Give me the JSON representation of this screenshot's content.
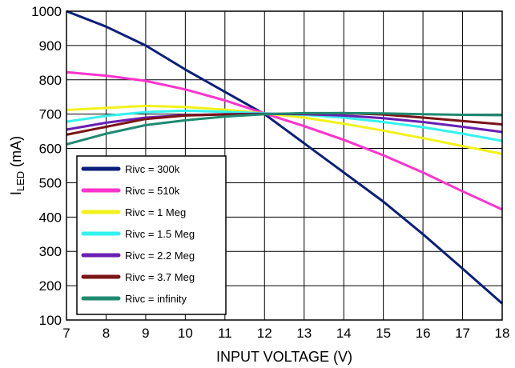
{
  "chart_data": {
    "type": "line",
    "xlabel": "INPUT VOLTAGE (V)",
    "ylabel_main": "I",
    "ylabel_sub": "LED",
    "ylabel_unit": " (mA)",
    "xlim": [
      7,
      18
    ],
    "ylim": [
      100,
      1000
    ],
    "xticks": [
      "7",
      "8",
      "9",
      "10",
      "11",
      "12",
      "13",
      "14",
      "15",
      "16",
      "17",
      "18"
    ],
    "yticks": [
      "100",
      "200",
      "300",
      "400",
      "500",
      "600",
      "700",
      "800",
      "900",
      "1000"
    ],
    "grid": true,
    "legend_position": "bottom-left",
    "x": [
      7,
      8,
      9,
      10,
      11,
      12,
      13,
      14,
      15,
      16,
      17,
      18
    ],
    "series": [
      {
        "name": "Rivc = 300k",
        "color": "#0a1f7a",
        "values": [
          1000,
          955,
          900,
          830,
          765,
          700,
          615,
          530,
          445,
          350,
          250,
          148
        ]
      },
      {
        "name": "Rivc = 510k",
        "color": "#ff33cc",
        "values": [
          822,
          812,
          797,
          772,
          740,
          702,
          665,
          625,
          580,
          530,
          475,
          422
        ]
      },
      {
        "name": "Rivc = 1 Meg",
        "color": "#f2f21a",
        "values": [
          712,
          718,
          724,
          721,
          713,
          702,
          690,
          672,
          652,
          630,
          607,
          584
        ]
      },
      {
        "name": "Rivc = 1.5 Meg",
        "color": "#33f2ee",
        "values": [
          678,
          695,
          706,
          710,
          707,
          702,
          698,
          690,
          677,
          662,
          643,
          622
        ]
      },
      {
        "name": "Rivc = 2.2 Meg",
        "color": "#6a1fb3",
        "values": [
          655,
          675,
          690,
          697,
          700,
          701,
          700,
          696,
          688,
          677,
          663,
          648
        ]
      },
      {
        "name": "Rivc = 3.7 Meg",
        "color": "#7a1416",
        "values": [
          640,
          663,
          686,
          696,
          699,
          700,
          702,
          703,
          699,
          690,
          680,
          670
        ]
      },
      {
        "name": "Rivc = infinity",
        "color": "#1f8a70",
        "values": [
          612,
          643,
          668,
          682,
          693,
          700,
          703,
          703,
          702,
          700,
          698,
          697
        ]
      }
    ]
  }
}
